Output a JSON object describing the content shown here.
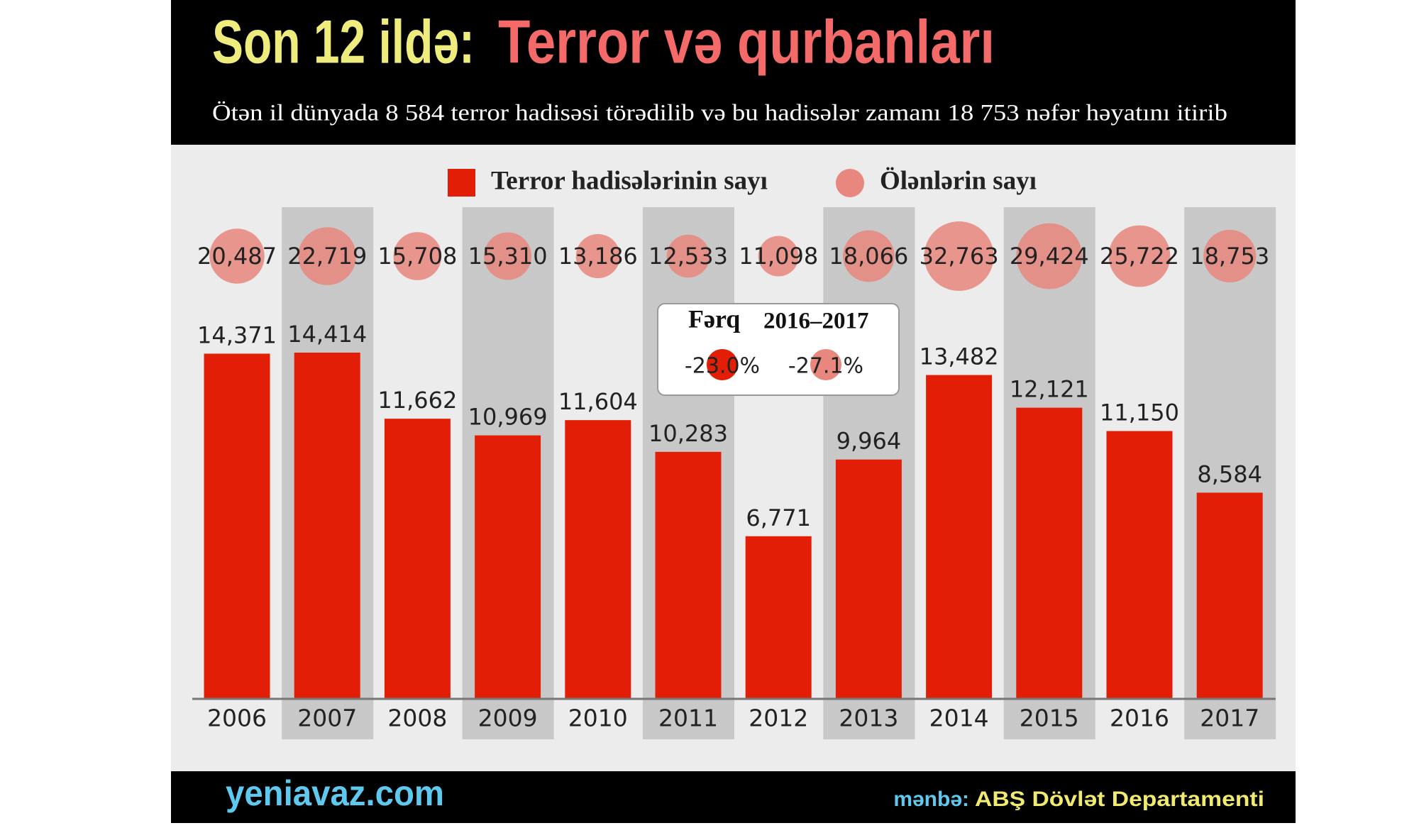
{
  "chart_data": {
    "type": "bar",
    "title": {
      "lead": "Son 12 ildə:",
      "main": "Terror və qurbanları"
    },
    "subtitle": "Ötən il dünyada 8 584 terror hadisəsi törədilib və bu hadisələr zamanı 18 753 nəfər həyatını itirib",
    "categories": [
      "2006",
      "2007",
      "2008",
      "2009",
      "2010",
      "2011",
      "2012",
      "2013",
      "2014",
      "2015",
      "2016",
      "2017"
    ],
    "series": [
      {
        "name": "Terror hadisələrinin sayı",
        "color": "#e31e06",
        "values": [
          14371,
          14414,
          11662,
          10969,
          11604,
          10283,
          6771,
          9964,
          13482,
          12121,
          11150,
          8584
        ],
        "value_labels": [
          "14,371",
          "14,414",
          "11,662",
          "10,969",
          "11,604",
          "10,283",
          "6,771",
          "9,964",
          "13,482",
          "12,121",
          "11,150",
          "8,584"
        ]
      },
      {
        "name": "Ölənlərin sayı",
        "color": "#e8877d",
        "values": [
          20487,
          22719,
          15708,
          15310,
          13186,
          12533,
          11098,
          18066,
          32763,
          29424,
          25722,
          18753
        ],
        "value_labels": [
          "20,487",
          "22,719",
          "15,708",
          "15,310",
          "13,186",
          "12,533",
          "11,098",
          "18,066",
          "32,763",
          "29,424",
          "25,722",
          "18,753"
        ]
      }
    ],
    "difference": {
      "title": "Fərq",
      "period": "2016–2017",
      "values": [
        -23.0,
        -27.1
      ],
      "value_labels": [
        "-23.0%",
        "-27.1%"
      ]
    },
    "footer": {
      "site": "yeniavaz.com",
      "source_label": "mənbə:",
      "source": "ABŞ Dövlət Departamenti"
    }
  }
}
